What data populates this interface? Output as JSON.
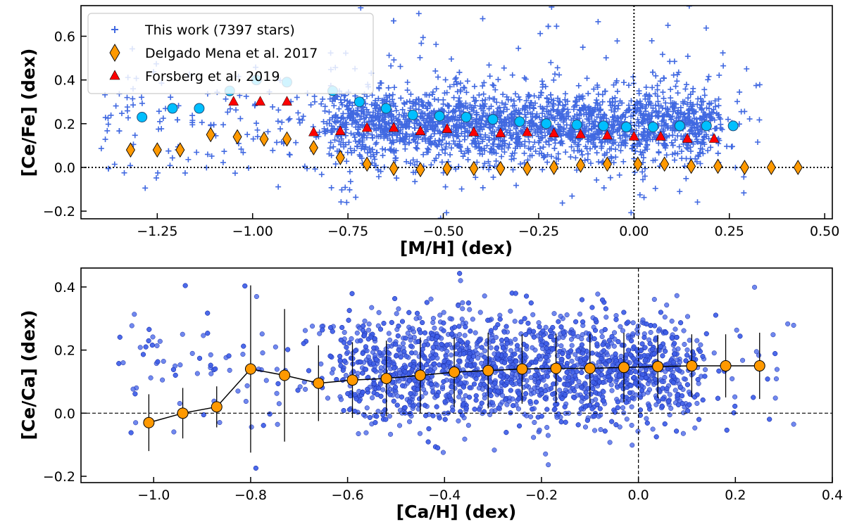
{
  "chart_data": [
    {
      "type": "scatter",
      "xlabel": "[M/H] (dex)",
      "ylabel": "[Ce/Fe] (dex)",
      "xlim": [
        -1.45,
        0.52
      ],
      "ylim": [
        -0.235,
        0.74
      ],
      "xticks": [
        -1.25,
        -1.0,
        -0.75,
        -0.5,
        -0.25,
        0.0,
        0.25,
        0.5
      ],
      "xtick_labels": [
        "−1.25",
        "−1.00",
        "−0.75",
        "−0.50",
        "−0.25",
        "0.00",
        "0.25",
        "0.50"
      ],
      "yticks": [
        -0.2,
        0.0,
        0.2,
        0.4,
        0.6
      ],
      "ytick_labels": [
        "−0.2",
        "0.0",
        "0.2",
        "0.4",
        "0.6"
      ],
      "hlines": [
        0.0
      ],
      "vlines": [
        0.0
      ],
      "legend_placement": "upper-left",
      "cloud": {
        "name": "This work (7397 stars)",
        "color": "#4169e1",
        "marker": "plus",
        "count_drawn": 2600,
        "x_range": [
          -1.4,
          0.33
        ],
        "y_center_core": 0.2,
        "core_x_range": [
          -0.8,
          0.2
        ]
      },
      "series": [
        {
          "name": "",
          "marker": "circle",
          "color": "#00bfff",
          "x": [
            -1.29,
            -1.21,
            -1.14,
            -1.06,
            -0.99,
            -0.91,
            -0.79,
            -0.72,
            -0.65,
            -0.58,
            -0.51,
            -0.44,
            -0.37,
            -0.3,
            -0.23,
            -0.15,
            -0.08,
            -0.02,
            0.05,
            0.12,
            0.19,
            0.26
          ],
          "y": [
            0.23,
            0.27,
            0.27,
            0.35,
            0.4,
            0.39,
            0.35,
            0.3,
            0.27,
            0.24,
            0.235,
            0.23,
            0.22,
            0.21,
            0.2,
            0.195,
            0.19,
            0.185,
            0.185,
            0.19,
            0.19,
            0.19
          ]
        },
        {
          "name": "Delgado Mena et al. 2017",
          "marker": "diamond",
          "color": "#ff9900",
          "x": [
            -1.32,
            -1.25,
            -1.19,
            -1.11,
            -1.04,
            -0.97,
            -0.91,
            -0.84,
            -0.77,
            -0.7,
            -0.63,
            -0.56,
            -0.49,
            -0.42,
            -0.35,
            -0.28,
            -0.21,
            -0.14,
            -0.07,
            0.01,
            0.08,
            0.15,
            0.22,
            0.29,
            0.36,
            0.43
          ],
          "y": [
            0.08,
            0.08,
            0.08,
            0.15,
            0.14,
            0.13,
            0.13,
            0.09,
            0.045,
            0.015,
            -0.005,
            -0.01,
            -0.005,
            -0.005,
            -0.005,
            -0.005,
            0.0,
            0.01,
            0.015,
            0.015,
            0.015,
            0.005,
            0.005,
            0.0,
            0.0,
            0.0
          ]
        },
        {
          "name": "Forsberg et al, 2019",
          "marker": "triangle",
          "color": "#ff0000",
          "x": [
            -1.05,
            -0.98,
            -0.91,
            -0.84,
            -0.77,
            -0.7,
            -0.63,
            -0.56,
            -0.49,
            -0.42,
            -0.35,
            -0.28,
            -0.21,
            -0.14,
            -0.07,
            0.0,
            0.07,
            0.14,
            0.21
          ],
          "y": [
            0.3,
            0.3,
            0.3,
            0.16,
            0.165,
            0.18,
            0.18,
            0.165,
            0.175,
            0.16,
            0.155,
            0.16,
            0.155,
            0.15,
            0.145,
            0.14,
            0.14,
            0.13,
            0.13
          ]
        }
      ]
    },
    {
      "type": "scatter",
      "xlabel": "[Ca/H] (dex)",
      "ylabel": "[Ce/Ca] (dex)",
      "xlim": [
        -1.15,
        0.4
      ],
      "ylim": [
        -0.22,
        0.46
      ],
      "xticks": [
        -1.0,
        -0.8,
        -0.6,
        -0.4,
        -0.2,
        0.0,
        0.2,
        0.4
      ],
      "xtick_labels": [
        "−1.0",
        "−0.8",
        "−0.6",
        "−0.4",
        "−0.2",
        "0.0",
        "0.2",
        "0.4"
      ],
      "yticks": [
        -0.2,
        0.0,
        0.2,
        0.4
      ],
      "ytick_labels": [
        "−0.2",
        "0.0",
        "0.2",
        "0.4"
      ],
      "hlines": [
        0.0
      ],
      "vlines": [
        0.0
      ],
      "cloud": {
        "name": "",
        "color": "#4060e8",
        "marker": "circle",
        "count_drawn": 2600,
        "x_range": [
          -1.08,
          0.33
        ],
        "y_center_core": 0.14,
        "core_x_range": [
          -0.6,
          0.1
        ]
      },
      "series": [
        {
          "name": "",
          "marker": "circle",
          "color": "#ff9900",
          "line": true,
          "x": [
            -1.01,
            -0.94,
            -0.87,
            -0.8,
            -0.73,
            -0.66,
            -0.59,
            -0.52,
            -0.45,
            -0.38,
            -0.31,
            -0.24,
            -0.17,
            -0.1,
            -0.03,
            0.04,
            0.11,
            0.18,
            0.25
          ],
          "y": [
            -0.03,
            0.0,
            0.02,
            0.14,
            0.12,
            0.095,
            0.105,
            0.11,
            0.12,
            0.13,
            0.135,
            0.14,
            0.142,
            0.142,
            0.145,
            0.148,
            0.15,
            0.15,
            0.15
          ],
          "err": [
            0.09,
            0.08,
            0.065,
            0.265,
            0.21,
            0.12,
            0.12,
            0.12,
            0.12,
            0.11,
            0.12,
            0.11,
            0.11,
            0.11,
            0.11,
            0.1,
            0.1,
            0.1,
            0.105
          ]
        }
      ]
    }
  ]
}
